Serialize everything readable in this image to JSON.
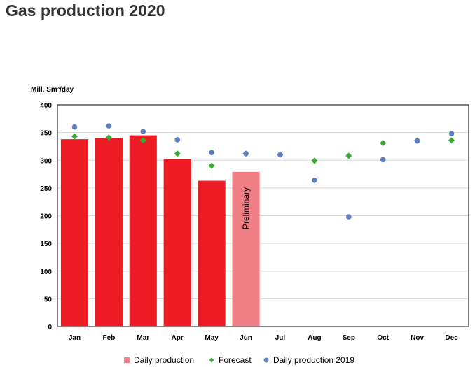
{
  "title": "Gas production 2020",
  "chart_data": {
    "type": "bar",
    "title": "Gas production 2020",
    "ylabel": "Mill. Sm³/day",
    "xlabel": "",
    "ylim": [
      0,
      400
    ],
    "yticks": [
      0,
      50,
      100,
      150,
      200,
      250,
      300,
      350,
      400
    ],
    "grid": true,
    "categories": [
      "Jan",
      "Feb",
      "Mar",
      "Apr",
      "May",
      "Jun",
      "Jul",
      "Aug",
      "Sep",
      "Oct",
      "Nov",
      "Dec"
    ],
    "series": [
      {
        "name": "Daily production",
        "kind": "bar",
        "color": "#ed1c24",
        "preliminary_color": "#f17f86",
        "values": [
          338,
          340,
          345,
          302,
          263,
          279,
          null,
          null,
          null,
          null,
          null,
          null
        ],
        "preliminary": [
          false,
          false,
          false,
          false,
          false,
          true,
          false,
          false,
          false,
          false,
          false,
          false
        ]
      },
      {
        "name": "Forecast",
        "kind": "marker",
        "marker": "diamond",
        "color": "#3aaa35",
        "values": [
          343,
          341,
          336,
          312,
          290,
          312,
          310,
          299,
          308,
          331,
          336,
          336
        ]
      },
      {
        "name": "Daily production 2019",
        "kind": "marker",
        "marker": "circle",
        "color": "#5b7fbf",
        "values": [
          360,
          362,
          352,
          337,
          314,
          312,
          310,
          264,
          198,
          301,
          335,
          348
        ]
      }
    ],
    "annotations": [
      {
        "category": "Jun",
        "text": "Preliminary"
      }
    ],
    "legend": {
      "placement": "bottom"
    }
  }
}
